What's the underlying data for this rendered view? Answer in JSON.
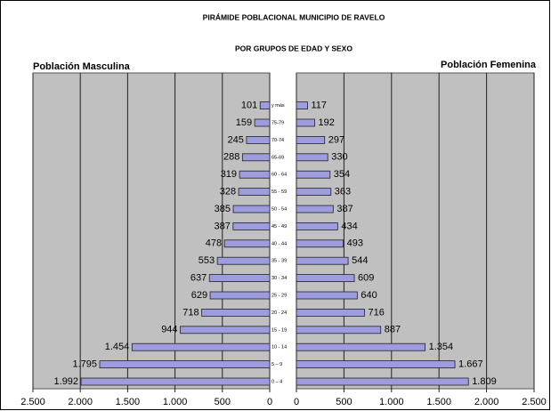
{
  "chart_data": {
    "type": "pyramid",
    "title": "PIRÁMIDE POBLACIONAL MUNICIPIO DE RAVELO",
    "subtitle": "POR GRUPOS DE EDAD Y SEXO",
    "categories": [
      "0 – 4",
      "5 – 9",
      "10 - 14",
      "15 - 19",
      "20 - 24",
      "25 - 29",
      "30 - 34",
      "35 - 39",
      "40 - 44",
      "45 - 49",
      "50 - 54",
      "55 - 59",
      "60 - 64",
      "65-69",
      "70-74",
      "75-79",
      "y más"
    ],
    "series": [
      {
        "name": "Población Masculina",
        "color": "#9c9cde",
        "values": [
          1992,
          1795,
          1454,
          944,
          718,
          629,
          637,
          553,
          478,
          387,
          385,
          328,
          319,
          288,
          245,
          159,
          101
        ],
        "value_labels": [
          "1.992",
          "1.795",
          "1.454",
          "944",
          "718",
          "629",
          "637",
          "553",
          "478",
          "387",
          "385",
          "328",
          "319",
          "288",
          "245",
          "159",
          "101"
        ]
      },
      {
        "name": "Población Femenina",
        "color": "#9c9cde",
        "values": [
          1809,
          1667,
          1354,
          887,
          716,
          640,
          609,
          544,
          493,
          434,
          387,
          363,
          354,
          330,
          297,
          192,
          117
        ],
        "value_labels": [
          "1.809",
          "1.667",
          "1.354",
          "887",
          "716",
          "640",
          "609",
          "544",
          "493",
          "434",
          "387",
          "363",
          "354",
          "330",
          "297",
          "192",
          "117"
        ]
      }
    ],
    "xlim": [
      0,
      2500
    ],
    "xticks": [
      0,
      500,
      {
        "value": 1000,
        "label": "1.000"
      },
      {
        "value": 1500,
        "label": "1.500"
      },
      {
        "value": 2000,
        "label": "2.000"
      },
      {
        "value": 2500,
        "label": "2.500"
      }
    ],
    "grid": true,
    "background": "#c0c0c0"
  }
}
